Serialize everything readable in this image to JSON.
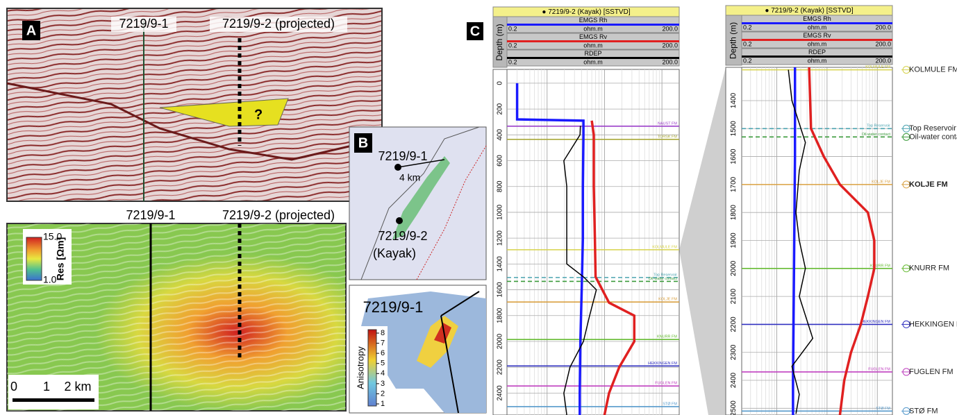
{
  "panel_a": {
    "label": "A",
    "seismic": {
      "well_1": "7219/9-1",
      "well_2": "7219/9-2 (projected)",
      "question": "?"
    },
    "resistivity": {
      "well_1": "7219/9-1",
      "well_2": "7219/9-2 (projected)",
      "colorbar_max": "15.0",
      "colorbar_label": "Res [Ωm]",
      "colorbar_min": "1.0",
      "scale_labels": [
        "0",
        "1",
        "2 km"
      ]
    }
  },
  "panel_b": {
    "label": "B",
    "map": {
      "well_1": "7219/9-1",
      "distance": "4 km",
      "well_2": "7219/9-2",
      "well_2_name": "(Kayak)"
    },
    "anisotropy": {
      "well": "7219/9-1",
      "colorbar_label": "Anisotropy",
      "ticks": [
        1,
        2,
        3,
        4,
        5,
        6,
        7,
        8
      ]
    }
  },
  "panel_c": {
    "label": "C",
    "logs": [
      {
        "title": "● 7219/9-2 (Kayak) [SSTVD]",
        "depth_label": "Depth (m)",
        "xscale": "log",
        "xlim": [
          0.2,
          200
        ],
        "xticks": [
          0.2,
          {
            "value": 200,
            "label": "200.0"
          }
        ],
        "ylim": [
          -107,
          2570
        ],
        "yticks": [
          0,
          200,
          400,
          600,
          800,
          1000,
          1200,
          1400,
          1600,
          1800,
          2000,
          2200,
          2400
        ],
        "grid": true,
        "tracks": [
          {
            "name": "EMGS Rh",
            "unit": "ohm.m",
            "color": "#1a1aff",
            "depth": [
              0,
              280,
              290,
              400,
              800,
              1200,
              1600,
              2000,
              2400,
              2570
            ],
            "values": [
              0.3,
              0.3,
              4.3,
              4.3,
              4.2,
              4.2,
              4,
              3.8,
              3.7,
              3.7
            ]
          },
          {
            "name": "EMGS Rv",
            "unit": "ohm.m",
            "color": "#e02020",
            "depth": [
              290,
              400,
              800,
              1200,
              1500,
              1700,
              1800,
              2000,
              2200,
              2400,
              2570
            ],
            "values": [
              6,
              6.5,
              6.5,
              6.8,
              7,
              12,
              33,
              33,
              18,
              12,
              10
            ]
          },
          {
            "name": "RDEP",
            "unit": "ohm.m",
            "color": "#000000",
            "depth": [
              330,
              400,
              600,
              800,
              1000,
              1200,
              1400,
              1500,
              1600,
              1800,
              2000,
              2200,
              2400,
              2570
            ],
            "values": [
              3.8,
              3.75,
              1.96,
              2.2,
              2.2,
              2.2,
              2.2,
              4.3,
              7.2,
              5.5,
              4.3,
              2.5,
              1.96,
              2.2
            ]
          }
        ],
        "tops": [
          {
            "name": "NAUST FM",
            "depth": 333,
            "color": "#9b3fc9"
          },
          {
            "name": "TORSK FM",
            "depth": 435,
            "color": "#a9a93a"
          },
          {
            "name": "KOLMULE FM",
            "depth": 1290,
            "color": "#d6d24a"
          },
          {
            "name": "Top Reservoir",
            "depth": 1505,
            "color": "#4aa3b0",
            "dashed": true
          },
          {
            "name": "Oil-water contact",
            "depth": 1535,
            "color": "#3a9a3a",
            "dashed": true
          },
          {
            "name": "KOLJE FM",
            "depth": 1695,
            "color": "#d9a040"
          },
          {
            "name": "KNURR FM",
            "depth": 1985,
            "color": "#66bb33"
          },
          {
            "name": "HEKKINGEN FM",
            "depth": 2190,
            "color": "#3030c0"
          },
          {
            "name": "FUGLEN FM",
            "depth": 2345,
            "color": "#c040c0"
          },
          {
            "name": "STØ FM",
            "depth": 2505,
            "color": "#5599cc"
          }
        ]
      },
      {
        "title": "● 7219/9-2 (Kayak) [SSTVD]",
        "depth_label": "Depth (m)",
        "xscale": "log",
        "xlim": [
          0.2,
          200
        ],
        "xticks": [
          0.2,
          {
            "value": 200,
            "label": "200.0"
          }
        ],
        "ylim": [
          1281,
          2524
        ],
        "yticks": [
          1400,
          1500,
          1600,
          1700,
          1800,
          1900,
          2000,
          2100,
          2200,
          2300,
          2400,
          2500
        ],
        "grid": true,
        "tracks": [
          {
            "name": "EMGS Rh",
            "unit": "ohm.m",
            "color": "#1a1aff",
            "depth": [
              1281,
              1600,
              2000,
              2400,
              2524
            ],
            "values": [
              2.3,
              2.3,
              2.2,
              2.1,
              2.1
            ]
          },
          {
            "name": "EMGS Rv",
            "unit": "ohm.m",
            "color": "#e02020",
            "depth": [
              1281,
              1500,
              1600,
              1700,
              1800,
              1900,
              2000,
              2100,
              2200,
              2300,
              2400,
              2524
            ],
            "values": [
              4.4,
              4.8,
              8.6,
              18,
              65,
              87,
              87,
              65,
              47,
              30,
              22,
              18
            ]
          },
          {
            "name": "RDEP",
            "unit": "ohm.m",
            "color": "#000000",
            "depth": [
              1290,
              1400,
              1550,
              1650,
              1800,
              1900,
              2000,
              2100,
              2250,
              2350,
              2450,
              2520
            ],
            "values": [
              1.7,
              2.0,
              3.7,
              2.8,
              2.4,
              2.8,
              3.7,
              2.8,
              5.2,
              2.0,
              2.8,
              2.4
            ]
          }
        ],
        "tops": [
          {
            "name": "KOLMULE FM",
            "depth": 1290,
            "color": "#d6d24a"
          },
          {
            "name": "Top Reservoir",
            "depth": 1500,
            "color": "#4aa3b0",
            "dashed": true
          },
          {
            "name": "Oil-water contact",
            "depth": 1530,
            "color": "#3a9a3a",
            "dashed": true
          },
          {
            "name": "KOLJE FM",
            "depth": 1700,
            "color": "#d9a040",
            "bold": true
          },
          {
            "name": "KNURR FM",
            "depth": 2000,
            "color": "#66bb33"
          },
          {
            "name": "HEKKINGEN FM",
            "depth": 2200,
            "color": "#3030c0"
          },
          {
            "name": "FUGLEN FM",
            "depth": 2370,
            "color": "#c040c0"
          },
          {
            "name": "STØ FM",
            "depth": 2510,
            "color": "#5599cc"
          }
        ]
      }
    ]
  }
}
